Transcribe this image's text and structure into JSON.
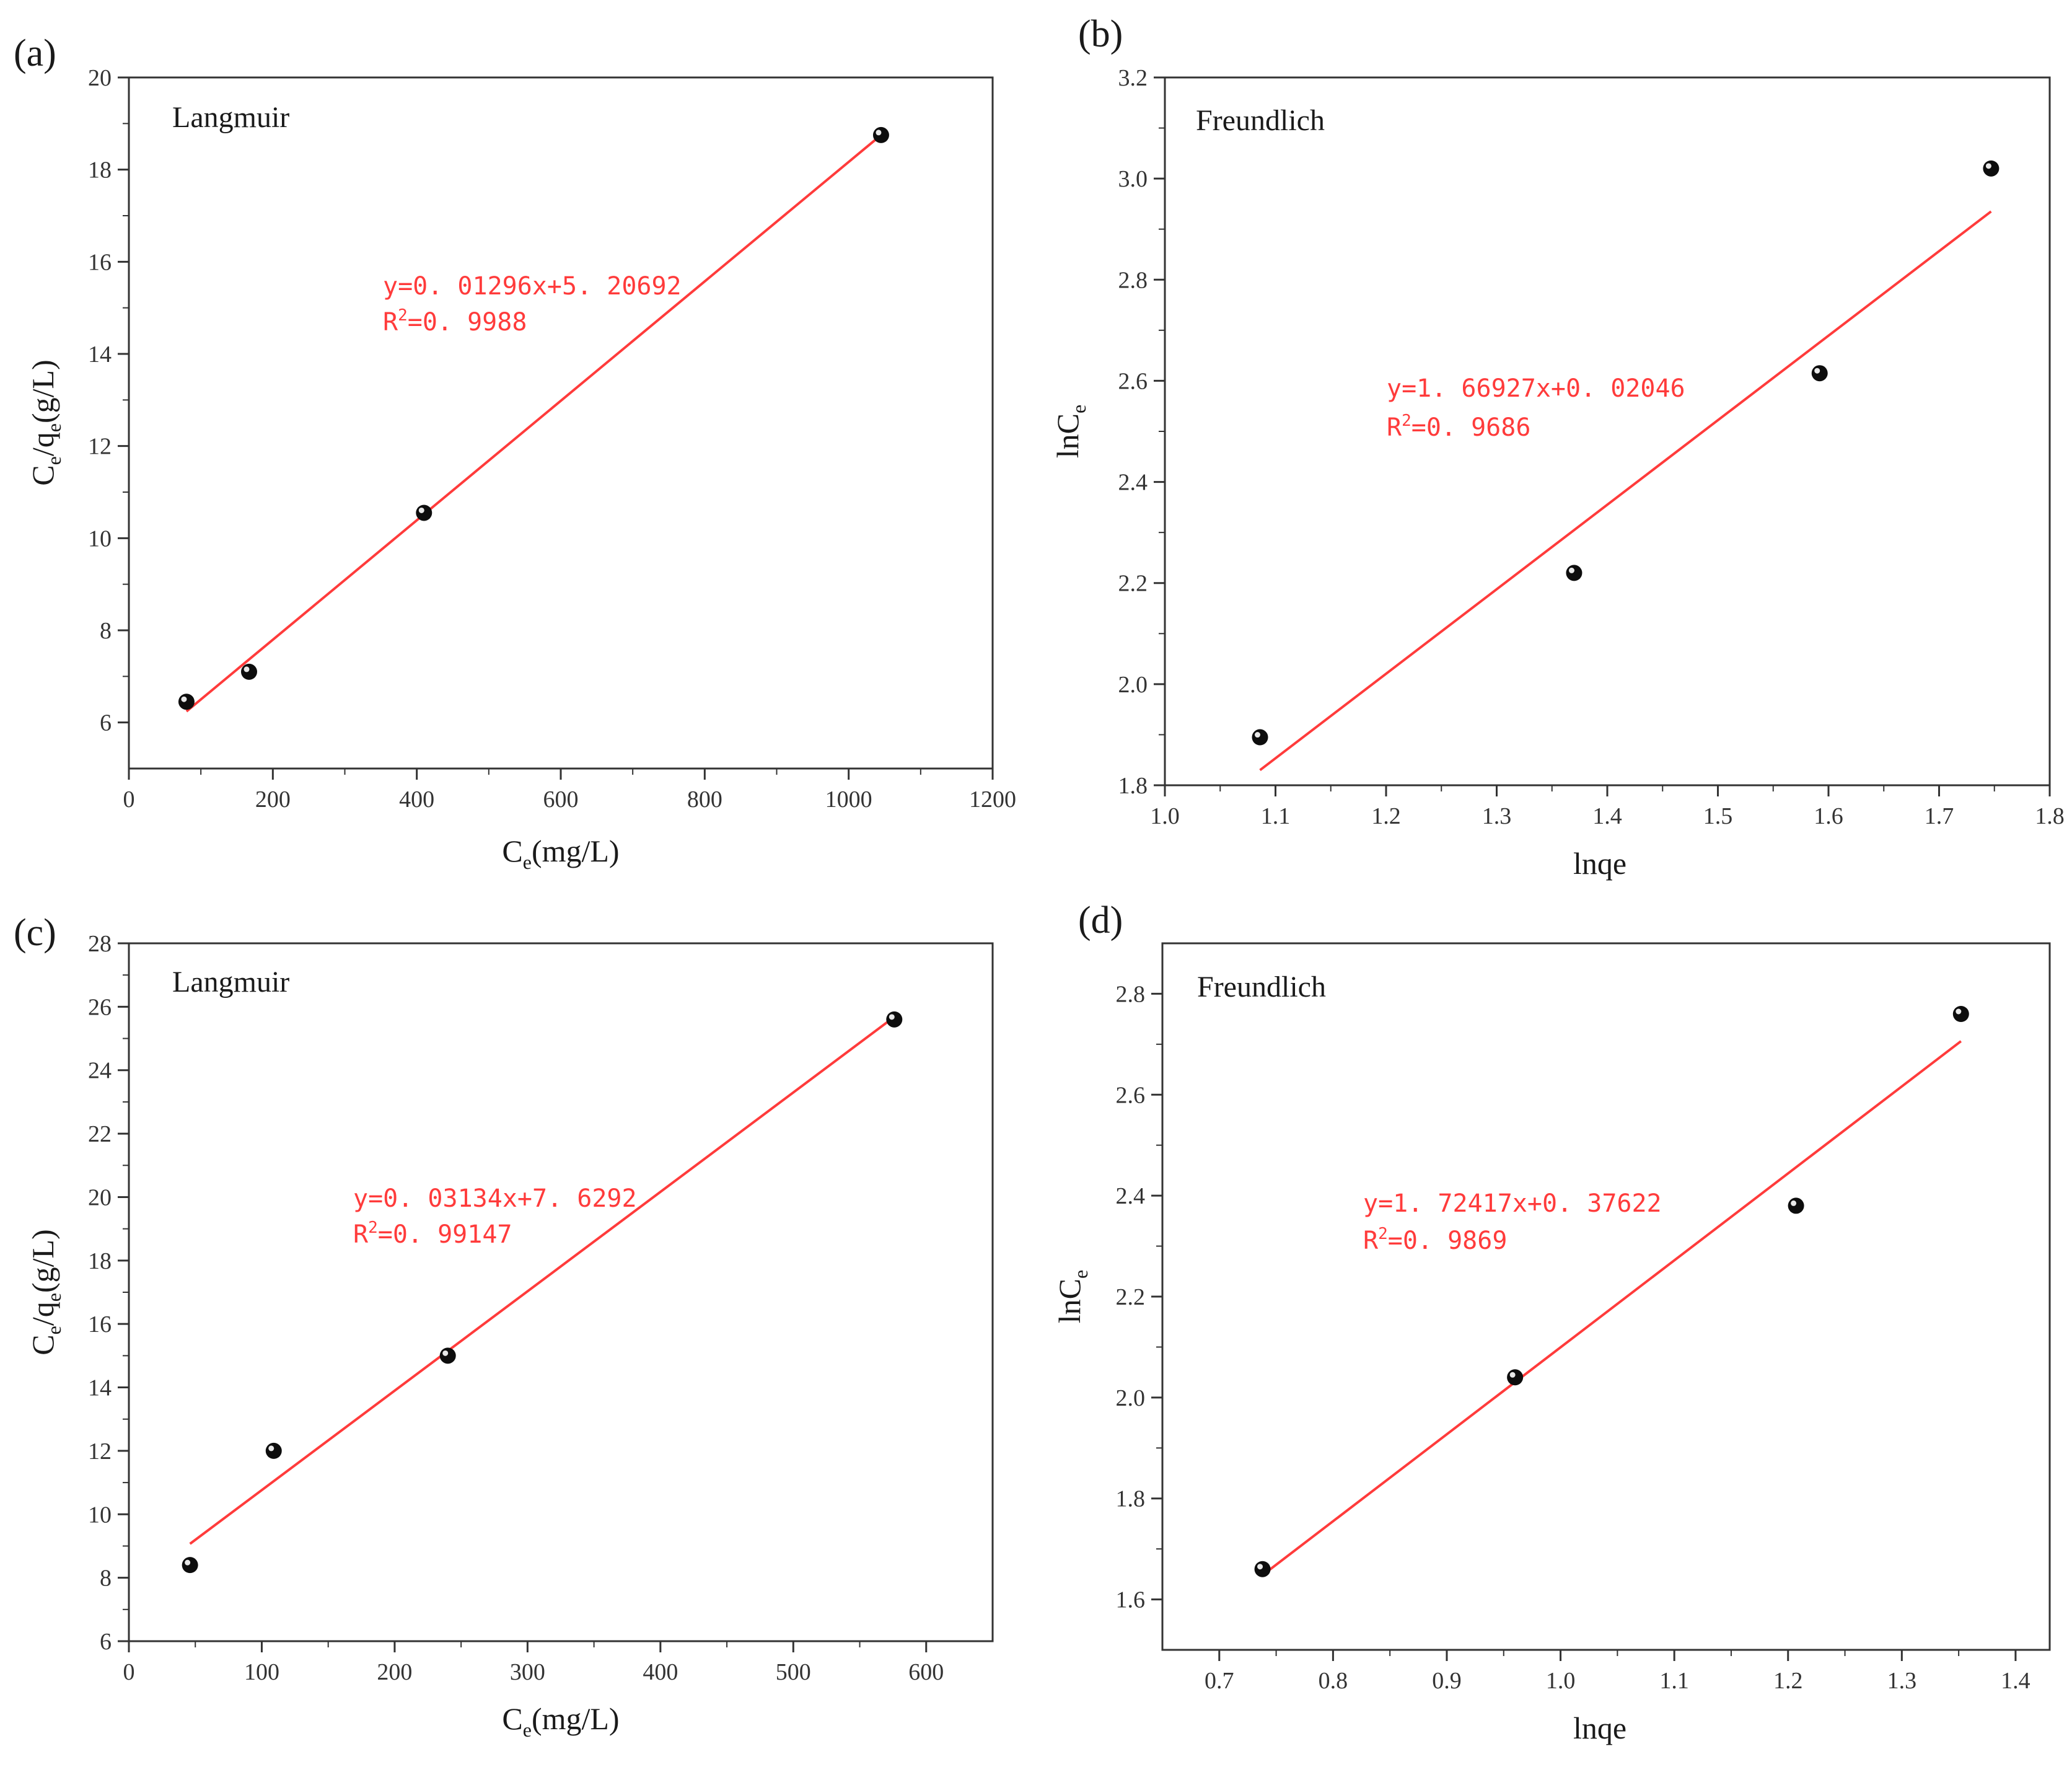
{
  "chart_data": [
    {
      "panel_label": "(a)",
      "type": "scatter",
      "model_label": "Langmuir",
      "xlabel": {
        "main": "C",
        "sub": "e",
        "rest": "(mg/L)"
      },
      "ylabel": {
        "main": "C",
        "sub1": "e",
        "mid": "/q",
        "sub2": "e",
        "rest": "(g/L)"
      },
      "xlim": [
        0,
        1200
      ],
      "ylim": [
        5,
        20
      ],
      "xticks": [
        0,
        200,
        400,
        600,
        800,
        1000,
        1200
      ],
      "xtick_labels": [
        "0",
        "200",
        "400",
        "600",
        "800",
        "1000",
        "1200"
      ],
      "yticks": [
        6,
        8,
        10,
        12,
        14,
        16,
        18,
        20
      ],
      "ytick_labels": [
        "6",
        "8",
        "10",
        "12",
        "14",
        "16",
        "18",
        "20"
      ],
      "x": [
        80,
        167,
        410,
        1045
      ],
      "y": [
        6.45,
        7.1,
        10.55,
        18.75
      ],
      "fit": {
        "x": [
          80,
          1045
        ],
        "y": [
          6.24,
          18.75
        ],
        "color": "#ff3b3b"
      },
      "equation": "y=0. 01296x+5. 20692",
      "r2": {
        "prefix": "R",
        "sup": "2",
        "value": "=0. 9988"
      }
    },
    {
      "panel_label": "(b)",
      "type": "scatter",
      "model_label": "Freundlich",
      "xlabel": {
        "main": "lnqe",
        "sub": "",
        "rest": ""
      },
      "ylabel": {
        "main": "lnC",
        "sub1": "e",
        "mid": "",
        "sub2": "",
        "rest": ""
      },
      "xlim": [
        1.0,
        1.8
      ],
      "ylim": [
        1.8,
        3.2
      ],
      "xticks": [
        1.0,
        1.1,
        1.2,
        1.3,
        1.4,
        1.5,
        1.6,
        1.7,
        1.8
      ],
      "xtick_labels": [
        "1.0",
        "1.1",
        "1.2",
        "1.3",
        "1.4",
        "1.5",
        "1.6",
        "1.7",
        "1.8"
      ],
      "yticks": [
        1.8,
        2.0,
        2.2,
        2.4,
        2.6,
        2.8,
        3.0,
        3.2
      ],
      "ytick_labels": [
        "1.8",
        "2.0",
        "2.2",
        "2.4",
        "2.6",
        "2.8",
        "3.0",
        "3.2"
      ],
      "x": [
        1.086,
        1.37,
        1.592,
        1.747
      ],
      "y": [
        1.895,
        2.22,
        2.615,
        3.02
      ],
      "fit": {
        "x": [
          1.086,
          1.747
        ],
        "y": [
          1.83,
          2.935
        ],
        "color": "#ff3b3b"
      },
      "equation": "y=1. 66927x+0. 02046",
      "r2": {
        "prefix": "R",
        "sup": "2",
        "value": "=0. 9686"
      }
    },
    {
      "panel_label": "(c)",
      "type": "scatter",
      "model_label": "Langmuir",
      "xlabel": {
        "main": "C",
        "sub": "e",
        "rest": "(mg/L)"
      },
      "ylabel": {
        "main": "C",
        "sub1": "e",
        "mid": "/q",
        "sub2": "e",
        "rest": "(g/L)"
      },
      "xlim": [
        0,
        650
      ],
      "ylim": [
        6,
        28
      ],
      "xticks": [
        0,
        100,
        200,
        300,
        400,
        500,
        600
      ],
      "xtick_labels": [
        "0",
        "100",
        "200",
        "300",
        "400",
        "500",
        "600"
      ],
      "yticks": [
        6,
        8,
        10,
        12,
        14,
        16,
        18,
        20,
        22,
        24,
        26,
        28
      ],
      "ytick_labels": [
        "6",
        "8",
        "10",
        "12",
        "14",
        "16",
        "18",
        "20",
        "22",
        "24",
        "26",
        "28"
      ],
      "x": [
        46,
        109,
        240,
        576
      ],
      "y": [
        8.4,
        12.0,
        15.0,
        25.6
      ],
      "fit": {
        "x": [
          46,
          576
        ],
        "y": [
          9.07,
          25.68
        ],
        "color": "#ff3b3b"
      },
      "equation": "y=0. 03134x+7. 6292",
      "r2": {
        "prefix": "R",
        "sup": "2",
        "value": "=0. 99147"
      }
    },
    {
      "panel_label": "(d)",
      "type": "scatter",
      "model_label": "Freundlich",
      "xlabel": {
        "main": "lnqe",
        "sub": "",
        "rest": ""
      },
      "ylabel": {
        "main": "lnC",
        "sub1": "e",
        "mid": "",
        "sub2": "",
        "rest": ""
      },
      "xlim": [
        0.65,
        1.43
      ],
      "ylim": [
        1.5,
        2.9
      ],
      "xticks": [
        0.7,
        0.8,
        0.9,
        1.0,
        1.1,
        1.2,
        1.3,
        1.4
      ],
      "xtick_labels": [
        "0.7",
        "0.8",
        "0.9",
        "1.0",
        "1.1",
        "1.2",
        "1.3",
        "1.4"
      ],
      "yticks": [
        1.6,
        1.8,
        2.0,
        2.2,
        2.4,
        2.6,
        2.8
      ],
      "ytick_labels": [
        "1.6",
        "1.8",
        "2.0",
        "2.2",
        "2.4",
        "2.6",
        "2.8"
      ],
      "x": [
        0.738,
        0.96,
        1.207,
        1.352
      ],
      "y": [
        1.66,
        2.04,
        2.38,
        2.76
      ],
      "fit": {
        "x": [
          0.738,
          1.352
        ],
        "y": [
          1.648,
          2.706
        ],
        "color": "#ff3b3b"
      },
      "equation": "y=1. 72417x+0. 37622",
      "r2": {
        "prefix": "R",
        "sup": "2",
        "value": "=0. 9869"
      }
    }
  ]
}
